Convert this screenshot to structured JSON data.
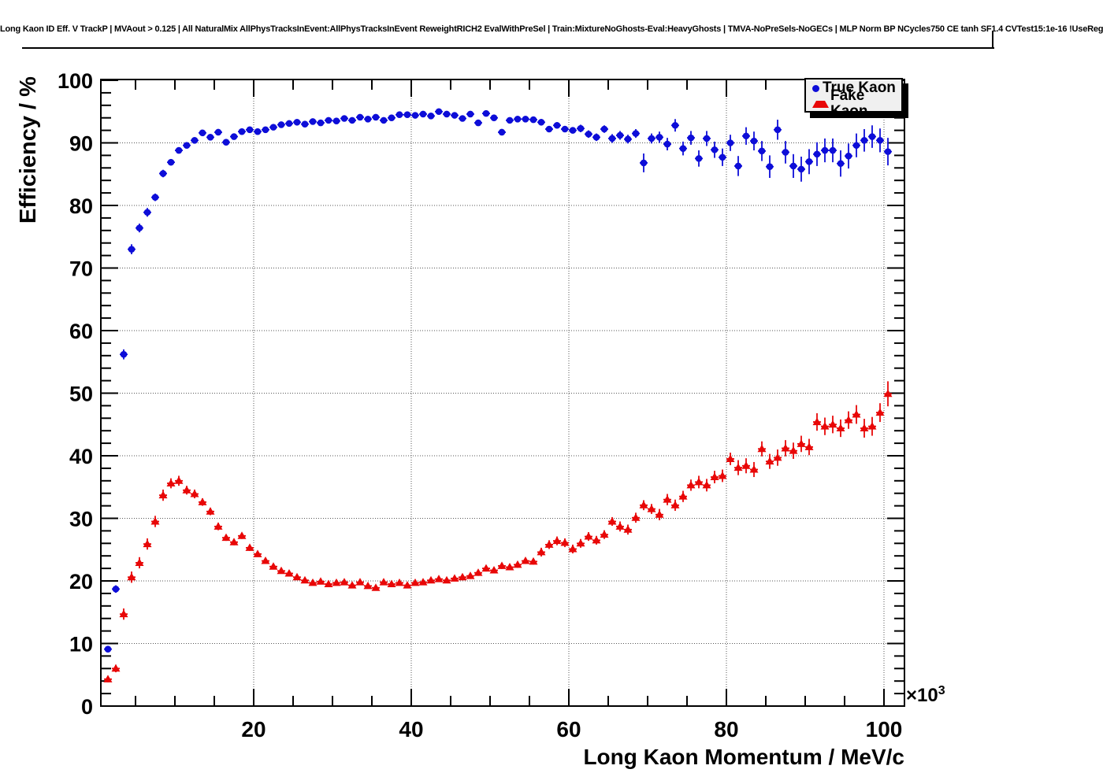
{
  "plot": {
    "title": "Long Kaon ID Eff. V TrackP | MVAout > 0.125 | All NaturalMix AllPhysTracksInEvent:AllPhysTracksInEvent ReweightRICH2 EvalWithPreSel | Train:MixtureNoGhosts-Eval:HeavyGhosts | TMVA-NoPreSels-NoGECs | MLP Norm BP NCycles750 CE tanh SF1.4 CVTest15:1e-16 !UseReg",
    "background_color": "#ffffff",
    "frame_color": "#000000",
    "grid_color": "#555555",
    "x_axis": {
      "label": "Long Kaon Momentum / MeV/c",
      "exponent_label": "×10",
      "exponent": "3",
      "major_ticks": [
        20,
        40,
        60,
        80,
        100
      ],
      "major_tick_labels": [
        "20",
        "40",
        "60",
        "80",
        "100"
      ],
      "minor_tick_step": 5,
      "range_in_thousands": [
        0.6,
        102.6
      ]
    },
    "y_axis": {
      "label": "Efficiency / %",
      "major_ticks": [
        0,
        10,
        20,
        30,
        40,
        50,
        60,
        70,
        80,
        90,
        100
      ],
      "major_tick_labels": [
        "0",
        "10",
        "20",
        "30",
        "40",
        "50",
        "60",
        "70",
        "80",
        "90",
        "100"
      ],
      "minor_tick_step": 2,
      "range": [
        0,
        100
      ]
    }
  },
  "chart_data": {
    "type": "scatter",
    "title": "Long Kaon ID Eff. V TrackP | MVAout > 0.125 | All NaturalMix AllPhysTracksInEvent:AllPhysTracksInEvent ReweightRICH2 EvalWithPreSel | Train:MixtureNoGhosts-Eval:HeavyGhosts | TMVA-NoPreSels-NoGECs | MLP Norm BP NCycles750 CE tanh SF1.4 CVTest15:1e-16 !UseReg",
    "xlabel": "Long Kaon Momentum / MeV/c",
    "ylabel": "Efficiency / %",
    "x_units": "10^3 MeV/c",
    "xlim_in_thousands": [
      0.6,
      102.6
    ],
    "ylim": [
      0,
      100
    ],
    "grid": true,
    "legend_position": "top-right",
    "x_error_half_width": 0.5,
    "point_format": "[x_in_10e3_MeV, efficiency_percent, y_error_percent]",
    "series": [
      {
        "name": "True Kaon",
        "marker": "circle",
        "color": "#0d0dd8",
        "points": [
          [
            1.5,
            9.1,
            0.5
          ],
          [
            2.5,
            18.7,
            0.6
          ],
          [
            3.5,
            56.2,
            0.8
          ],
          [
            4.5,
            73.0,
            0.8
          ],
          [
            5.5,
            76.4,
            0.7
          ],
          [
            6.5,
            78.9,
            0.7
          ],
          [
            7.5,
            81.3,
            0.6
          ],
          [
            8.5,
            85.1,
            0.6
          ],
          [
            9.5,
            86.9,
            0.5
          ],
          [
            10.5,
            88.8,
            0.5
          ],
          [
            11.5,
            89.6,
            0.4
          ],
          [
            12.5,
            90.4,
            0.4
          ],
          [
            13.5,
            91.6,
            0.4
          ],
          [
            14.5,
            90.9,
            0.4
          ],
          [
            15.5,
            91.7,
            0.4
          ],
          [
            16.5,
            90.1,
            0.4
          ],
          [
            17.5,
            91.0,
            0.4
          ],
          [
            18.5,
            91.8,
            0.4
          ],
          [
            19.5,
            92.1,
            0.3
          ],
          [
            20.5,
            91.8,
            0.3
          ],
          [
            21.5,
            92.1,
            0.3
          ],
          [
            22.5,
            92.5,
            0.3
          ],
          [
            23.5,
            92.9,
            0.3
          ],
          [
            24.5,
            93.1,
            0.3
          ],
          [
            25.5,
            93.3,
            0.3
          ],
          [
            26.5,
            93.0,
            0.3
          ],
          [
            27.5,
            93.4,
            0.3
          ],
          [
            28.5,
            93.2,
            0.3
          ],
          [
            29.5,
            93.6,
            0.3
          ],
          [
            30.5,
            93.5,
            0.3
          ],
          [
            31.5,
            93.9,
            0.3
          ],
          [
            32.5,
            93.6,
            0.3
          ],
          [
            33.5,
            94.1,
            0.3
          ],
          [
            34.5,
            93.8,
            0.3
          ],
          [
            35.5,
            94.1,
            0.3
          ],
          [
            36.5,
            93.6,
            0.3
          ],
          [
            37.5,
            94.0,
            0.3
          ],
          [
            38.5,
            94.5,
            0.3
          ],
          [
            39.5,
            94.5,
            0.3
          ],
          [
            40.5,
            94.4,
            0.3
          ],
          [
            41.5,
            94.6,
            0.3
          ],
          [
            42.5,
            94.3,
            0.3
          ],
          [
            43.5,
            95.0,
            0.3
          ],
          [
            44.5,
            94.6,
            0.3
          ],
          [
            45.5,
            94.4,
            0.3
          ],
          [
            46.5,
            93.9,
            0.4
          ],
          [
            47.5,
            94.6,
            0.4
          ],
          [
            48.5,
            93.2,
            0.4
          ],
          [
            49.5,
            94.7,
            0.4
          ],
          [
            50.5,
            94.0,
            0.4
          ],
          [
            51.5,
            91.7,
            0.5
          ],
          [
            52.5,
            93.6,
            0.4
          ],
          [
            53.5,
            93.8,
            0.4
          ],
          [
            54.5,
            93.8,
            0.4
          ],
          [
            55.5,
            93.7,
            0.4
          ],
          [
            56.5,
            93.3,
            0.5
          ],
          [
            57.5,
            92.2,
            0.5
          ],
          [
            58.5,
            92.8,
            0.5
          ],
          [
            59.5,
            92.2,
            0.5
          ],
          [
            60.5,
            92.0,
            0.5
          ],
          [
            61.5,
            92.3,
            0.6
          ],
          [
            62.5,
            91.4,
            0.6
          ],
          [
            63.5,
            90.9,
            0.6
          ],
          [
            64.5,
            92.2,
            0.6
          ],
          [
            65.5,
            90.7,
            0.7
          ],
          [
            66.5,
            91.2,
            0.7
          ],
          [
            67.5,
            90.6,
            0.7
          ],
          [
            68.5,
            91.5,
            0.7
          ],
          [
            69.5,
            86.8,
            1.5
          ],
          [
            70.5,
            90.7,
            0.8
          ],
          [
            71.5,
            90.9,
            0.9
          ],
          [
            72.5,
            89.8,
            1.0
          ],
          [
            73.5,
            92.8,
            1.0
          ],
          [
            74.5,
            89.1,
            1.1
          ],
          [
            75.5,
            90.8,
            1.1
          ],
          [
            76.5,
            87.5,
            1.3
          ],
          [
            77.5,
            90.7,
            1.2
          ],
          [
            78.5,
            88.9,
            1.3
          ],
          [
            79.5,
            87.7,
            1.4
          ],
          [
            80.5,
            90.0,
            1.3
          ],
          [
            81.5,
            86.3,
            1.6
          ],
          [
            82.5,
            91.1,
            1.4
          ],
          [
            83.5,
            90.3,
            1.5
          ],
          [
            84.5,
            88.7,
            1.6
          ],
          [
            85.5,
            86.2,
            1.8
          ],
          [
            86.5,
            92.1,
            1.6
          ],
          [
            87.5,
            88.5,
            1.8
          ],
          [
            88.5,
            86.3,
            1.9
          ],
          [
            89.5,
            85.8,
            2.0
          ],
          [
            90.5,
            87.0,
            2.0
          ],
          [
            91.5,
            88.2,
            1.9
          ],
          [
            92.5,
            88.8,
            1.9
          ],
          [
            93.5,
            88.8,
            1.9
          ],
          [
            94.5,
            86.7,
            2.1
          ],
          [
            95.5,
            87.9,
            2.0
          ],
          [
            96.5,
            89.6,
            1.9
          ],
          [
            97.5,
            90.4,
            1.8
          ],
          [
            98.5,
            91.0,
            1.8
          ],
          [
            99.5,
            90.4,
            1.9
          ],
          [
            100.5,
            88.6,
            2.2
          ]
        ]
      },
      {
        "name": "Fake Kaon",
        "marker": "triangle",
        "color": "#e80707",
        "points": [
          [
            1.5,
            4.3,
            0.5
          ],
          [
            2.5,
            6.0,
            0.6
          ],
          [
            3.5,
            14.7,
            0.9
          ],
          [
            4.5,
            20.6,
            0.9
          ],
          [
            5.5,
            22.9,
            0.9
          ],
          [
            6.5,
            25.9,
            0.9
          ],
          [
            7.5,
            29.5,
            0.9
          ],
          [
            8.5,
            33.7,
            0.9
          ],
          [
            9.5,
            35.6,
            0.8
          ],
          [
            10.5,
            36.0,
            0.8
          ],
          [
            11.5,
            34.5,
            0.7
          ],
          [
            12.5,
            33.9,
            0.7
          ],
          [
            13.5,
            32.6,
            0.6
          ],
          [
            14.5,
            31.1,
            0.6
          ],
          [
            15.5,
            28.7,
            0.6
          ],
          [
            16.5,
            26.9,
            0.5
          ],
          [
            17.5,
            26.2,
            0.5
          ],
          [
            18.5,
            27.2,
            0.5
          ],
          [
            19.5,
            25.3,
            0.5
          ],
          [
            20.5,
            24.3,
            0.4
          ],
          [
            21.5,
            23.2,
            0.4
          ],
          [
            22.5,
            22.3,
            0.4
          ],
          [
            23.5,
            21.6,
            0.4
          ],
          [
            24.5,
            21.2,
            0.4
          ],
          [
            25.5,
            20.6,
            0.4
          ],
          [
            26.5,
            20.1,
            0.4
          ],
          [
            27.5,
            19.7,
            0.4
          ],
          [
            28.5,
            19.9,
            0.4
          ],
          [
            29.5,
            19.5,
            0.4
          ],
          [
            30.5,
            19.7,
            0.4
          ],
          [
            31.5,
            19.8,
            0.4
          ],
          [
            32.5,
            19.3,
            0.4
          ],
          [
            33.5,
            19.8,
            0.4
          ],
          [
            34.5,
            19.2,
            0.4
          ],
          [
            35.5,
            18.9,
            0.4
          ],
          [
            36.5,
            19.8,
            0.4
          ],
          [
            37.5,
            19.5,
            0.4
          ],
          [
            38.5,
            19.7,
            0.4
          ],
          [
            39.5,
            19.3,
            0.4
          ],
          [
            40.5,
            19.7,
            0.4
          ],
          [
            41.5,
            19.8,
            0.4
          ],
          [
            42.5,
            20.1,
            0.4
          ],
          [
            43.5,
            20.3,
            0.4
          ],
          [
            44.5,
            20.1,
            0.4
          ],
          [
            45.5,
            20.4,
            0.4
          ],
          [
            46.5,
            20.6,
            0.5
          ],
          [
            47.5,
            20.8,
            0.5
          ],
          [
            48.5,
            21.3,
            0.5
          ],
          [
            49.5,
            22.0,
            0.5
          ],
          [
            50.5,
            21.7,
            0.5
          ],
          [
            51.5,
            22.4,
            0.5
          ],
          [
            52.5,
            22.2,
            0.5
          ],
          [
            53.5,
            22.6,
            0.5
          ],
          [
            54.5,
            23.2,
            0.5
          ],
          [
            55.5,
            23.1,
            0.5
          ],
          [
            56.5,
            24.6,
            0.7
          ],
          [
            57.5,
            25.8,
            0.7
          ],
          [
            58.5,
            26.4,
            0.7
          ],
          [
            59.5,
            26.1,
            0.7
          ],
          [
            60.5,
            25.1,
            0.7
          ],
          [
            61.5,
            26.0,
            0.7
          ],
          [
            62.5,
            27.1,
            0.7
          ],
          [
            63.5,
            26.5,
            0.7
          ],
          [
            64.5,
            27.4,
            0.7
          ],
          [
            65.5,
            29.5,
            0.7
          ],
          [
            66.5,
            28.7,
            0.8
          ],
          [
            67.5,
            28.2,
            0.8
          ],
          [
            68.5,
            30.1,
            0.8
          ],
          [
            69.5,
            32.1,
            0.8
          ],
          [
            70.5,
            31.5,
            0.8
          ],
          [
            71.5,
            30.6,
            0.9
          ],
          [
            72.5,
            33.0,
            0.9
          ],
          [
            73.5,
            32.1,
            0.9
          ],
          [
            74.5,
            33.5,
            0.9
          ],
          [
            75.5,
            35.3,
            0.9
          ],
          [
            76.5,
            35.8,
            1.0
          ],
          [
            77.5,
            35.3,
            1.0
          ],
          [
            78.5,
            36.6,
            1.0
          ],
          [
            79.5,
            36.8,
            1.0
          ],
          [
            80.5,
            39.5,
            1.0
          ],
          [
            81.5,
            38.1,
            1.2
          ],
          [
            82.5,
            38.4,
            1.2
          ],
          [
            83.5,
            37.8,
            1.2
          ],
          [
            84.5,
            41.1,
            1.2
          ],
          [
            85.5,
            39.1,
            1.2
          ],
          [
            86.5,
            39.7,
            1.3
          ],
          [
            87.5,
            41.2,
            1.3
          ],
          [
            88.5,
            40.8,
            1.3
          ],
          [
            89.5,
            41.9,
            1.3
          ],
          [
            90.5,
            41.4,
            1.3
          ],
          [
            91.5,
            45.4,
            1.4
          ],
          [
            92.5,
            44.7,
            1.4
          ],
          [
            93.5,
            45.0,
            1.4
          ],
          [
            94.5,
            44.4,
            1.4
          ],
          [
            95.5,
            45.7,
            1.4
          ],
          [
            96.5,
            46.6,
            1.5
          ],
          [
            97.5,
            44.4,
            1.5
          ],
          [
            98.5,
            44.7,
            1.5
          ],
          [
            99.5,
            46.9,
            1.5
          ],
          [
            100.5,
            49.9,
            2.0
          ]
        ]
      }
    ]
  }
}
